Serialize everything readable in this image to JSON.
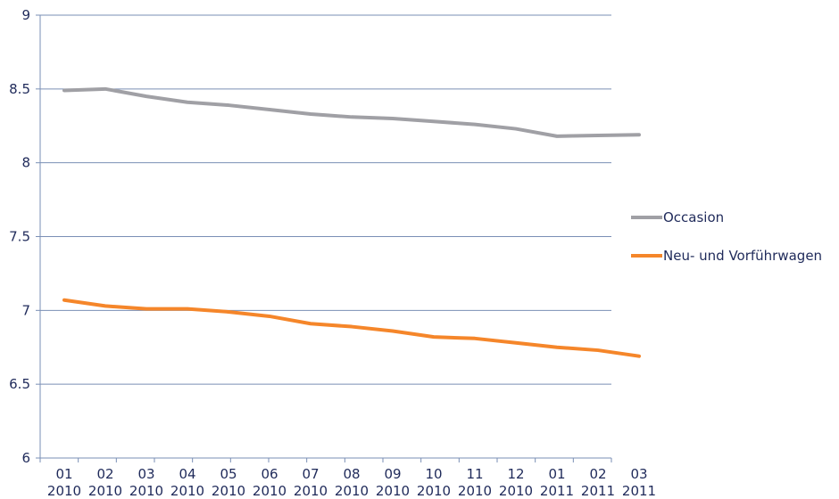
{
  "chart_data": {
    "type": "line",
    "title": "",
    "xlabel": "",
    "ylabel": "",
    "categories": [
      {
        "month": "01",
        "year": "2010"
      },
      {
        "month": "02",
        "year": "2010"
      },
      {
        "month": "03",
        "year": "2010"
      },
      {
        "month": "04",
        "year": "2010"
      },
      {
        "month": "05",
        "year": "2010"
      },
      {
        "month": "06",
        "year": "2010"
      },
      {
        "month": "07",
        "year": "2010"
      },
      {
        "month": "08",
        "year": "2010"
      },
      {
        "month": "09",
        "year": "2010"
      },
      {
        "month": "10",
        "year": "2010"
      },
      {
        "month": "11",
        "year": "2010"
      },
      {
        "month": "12",
        "year": "2010"
      },
      {
        "month": "01",
        "year": "2011"
      },
      {
        "month": "02",
        "year": "2011"
      },
      {
        "month": "03",
        "year": "2011"
      }
    ],
    "ylim": [
      6,
      9
    ],
    "yticks": [
      "6",
      "6.5",
      "7",
      "7.5",
      "8",
      "8.5",
      "9"
    ],
    "grid": true,
    "legend_position": "right",
    "series": [
      {
        "name": "Occasion",
        "color": "#a0a0a5",
        "values": [
          8.49,
          8.5,
          8.45,
          8.41,
          8.39,
          8.36,
          8.33,
          8.31,
          8.3,
          8.28,
          8.26,
          8.23,
          8.18,
          8.185,
          8.19
        ]
      },
      {
        "name": "Neu- und Vorführwagen",
        "color": "#f5862a",
        "values": [
          7.07,
          7.03,
          7.01,
          7.01,
          6.99,
          6.96,
          6.91,
          6.89,
          6.86,
          6.82,
          6.81,
          6.78,
          6.75,
          6.73,
          6.69
        ]
      }
    ],
    "axis_color": "#7a8fb5",
    "grid_color": "#7a8fb5"
  }
}
